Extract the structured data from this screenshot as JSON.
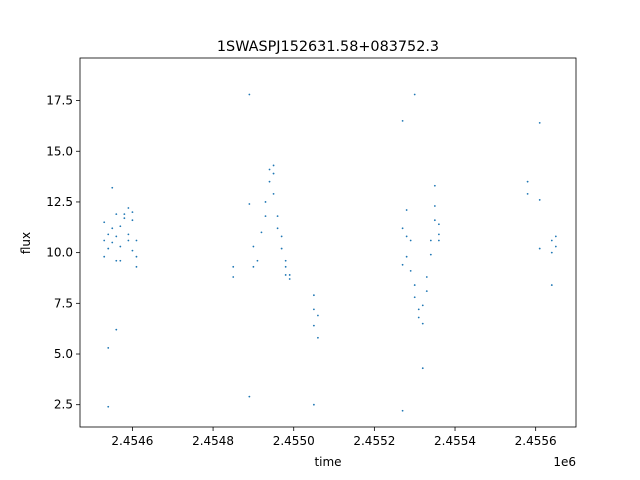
{
  "chart_data": {
    "type": "scatter",
    "title": "1SWASPJ152631.58+083752.3",
    "xlabel": "time",
    "ylabel": "flux",
    "x_offset_label": "1e6",
    "xlim": [
      2.45447,
      2.4557
    ],
    "ylim": [
      1.4,
      19.6
    ],
    "x_ticks": [
      2.4546,
      2.4548,
      2.455,
      2.4552,
      2.4554,
      2.4556
    ],
    "x_tick_labels": [
      "2.4546",
      "2.4548",
      "2.4550",
      "2.4552",
      "2.4554",
      "2.4556"
    ],
    "y_ticks": [
      2.5,
      5.0,
      7.5,
      10.0,
      12.5,
      15.0,
      17.5
    ],
    "y_tick_labels": [
      "2.5",
      "5.0",
      "7.5",
      "10.0",
      "12.5",
      "15.0",
      "17.5"
    ],
    "grid": false,
    "marker_color": "#1f77b4",
    "points": [
      [
        2.45453,
        10.6
      ],
      [
        2.45453,
        11.5
      ],
      [
        2.45453,
        9.8
      ],
      [
        2.45454,
        10.9
      ],
      [
        2.45454,
        10.2
      ],
      [
        2.45454,
        5.3
      ],
      [
        2.45454,
        2.4
      ],
      [
        2.45455,
        11.2
      ],
      [
        2.45455,
        10.5
      ],
      [
        2.45455,
        13.2
      ],
      [
        2.45456,
        10.8
      ],
      [
        2.45456,
        11.9
      ],
      [
        2.45456,
        9.6
      ],
      [
        2.45456,
        6.2
      ],
      [
        2.45457,
        10.3
      ],
      [
        2.45457,
        9.6
      ],
      [
        2.45457,
        11.3
      ],
      [
        2.45458,
        11.7
      ],
      [
        2.45458,
        11.9
      ],
      [
        2.45459,
        10.6
      ],
      [
        2.45459,
        10.9
      ],
      [
        2.45459,
        12.2
      ],
      [
        2.4546,
        11.6
      ],
      [
        2.4546,
        12.0
      ],
      [
        2.4546,
        10.1
      ],
      [
        2.45461,
        10.6
      ],
      [
        2.45461,
        9.3
      ],
      [
        2.45461,
        9.8
      ],
      [
        2.45485,
        9.3
      ],
      [
        2.45485,
        8.8
      ],
      [
        2.45489,
        12.4
      ],
      [
        2.45489,
        17.8
      ],
      [
        2.45489,
        2.9
      ],
      [
        2.4549,
        9.3
      ],
      [
        2.4549,
        10.3
      ],
      [
        2.45491,
        9.6
      ],
      [
        2.45492,
        11.0
      ],
      [
        2.45493,
        12.5
      ],
      [
        2.45493,
        11.8
      ],
      [
        2.45494,
        13.5
      ],
      [
        2.45494,
        14.1
      ],
      [
        2.45495,
        14.3
      ],
      [
        2.45495,
        13.9
      ],
      [
        2.45495,
        12.9
      ],
      [
        2.45496,
        11.8
      ],
      [
        2.45496,
        11.2
      ],
      [
        2.45497,
        10.8
      ],
      [
        2.45497,
        10.2
      ],
      [
        2.45498,
        9.6
      ],
      [
        2.45498,
        9.3
      ],
      [
        2.45498,
        8.9
      ],
      [
        2.45499,
        8.7
      ],
      [
        2.45499,
        8.9
      ],
      [
        2.45505,
        7.9
      ],
      [
        2.45505,
        7.2
      ],
      [
        2.45505,
        6.4
      ],
      [
        2.45505,
        2.5
      ],
      [
        2.45506,
        6.9
      ],
      [
        2.45506,
        5.8
      ],
      [
        2.45527,
        9.4
      ],
      [
        2.45527,
        11.2
      ],
      [
        2.45527,
        16.5
      ],
      [
        2.45527,
        2.2
      ],
      [
        2.45528,
        12.1
      ],
      [
        2.45528,
        10.8
      ],
      [
        2.45528,
        9.8
      ],
      [
        2.45529,
        10.6
      ],
      [
        2.45529,
        9.1
      ],
      [
        2.4553,
        8.4
      ],
      [
        2.4553,
        7.8
      ],
      [
        2.4553,
        17.8
      ],
      [
        2.45531,
        7.2
      ],
      [
        2.45531,
        6.8
      ],
      [
        2.45532,
        6.5
      ],
      [
        2.45532,
        7.4
      ],
      [
        2.45532,
        4.3
      ],
      [
        2.45533,
        8.1
      ],
      [
        2.45533,
        8.8
      ],
      [
        2.45534,
        9.9
      ],
      [
        2.45534,
        10.6
      ],
      [
        2.45535,
        11.6
      ],
      [
        2.45535,
        12.3
      ],
      [
        2.45535,
        13.3
      ],
      [
        2.45536,
        11.4
      ],
      [
        2.45536,
        10.9
      ],
      [
        2.45536,
        10.6
      ],
      [
        2.45558,
        13.5
      ],
      [
        2.45558,
        12.9
      ],
      [
        2.45561,
        16.4
      ],
      [
        2.45561,
        10.2
      ],
      [
        2.45561,
        12.6
      ],
      [
        2.45564,
        10.6
      ],
      [
        2.45564,
        10.0
      ],
      [
        2.45564,
        8.4
      ],
      [
        2.45565,
        10.8
      ],
      [
        2.45565,
        10.3
      ]
    ]
  }
}
